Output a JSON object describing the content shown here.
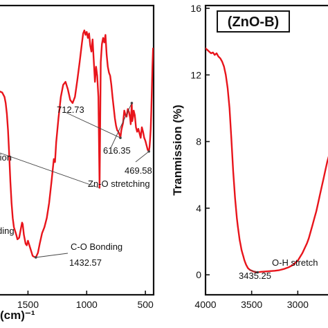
{
  "chart_data": [
    {
      "type": "line",
      "title": "",
      "xlabel": "(cm)⁻¹",
      "ylabel": "",
      "xlim": [
        1750,
        430
      ],
      "ylim": [
        0,
        16
      ],
      "x_ticks": [
        1500,
        1000,
        500
      ],
      "x_tick_labels": [
        "1500",
        "1000",
        "500"
      ],
      "series": [
        {
          "color": "#e8141b",
          "x": [
            1750,
            1720,
            1700,
            1690,
            1680,
            1670,
            1660,
            1650,
            1640,
            1630,
            1620,
            1600,
            1590,
            1575,
            1560,
            1550,
            1545,
            1535,
            1520,
            1510,
            1500,
            1480,
            1460,
            1450,
            1433,
            1415,
            1400,
            1380,
            1360,
            1340,
            1320,
            1300,
            1280,
            1270,
            1260,
            1240,
            1220,
            1200,
            1180,
            1160,
            1140,
            1120,
            1100,
            1080,
            1060,
            1040,
            1030,
            1020,
            1010,
            1000,
            990,
            980,
            970,
            960,
            950,
            940,
            930,
            920,
            910,
            900,
            895,
            890,
            885,
            880,
            870,
            860,
            850,
            840,
            830,
            820,
            810,
            800,
            790,
            780,
            770,
            760,
            750,
            740,
            730,
            720,
            713,
            705,
            690,
            680,
            670,
            660,
            650,
            640,
            630,
            625,
            620,
            616,
            612,
            605,
            600,
            590,
            580,
            570,
            560,
            550,
            540,
            530,
            520,
            510,
            500,
            490,
            480,
            470,
            465,
            460,
            455,
            450,
            445,
            440,
            435
          ],
          "y": [
            11.0,
            10.9,
            10.6,
            10.2,
            9.5,
            8.4,
            6.8,
            5.0,
            3.6,
            2.6,
            2.0,
            1.5,
            1.2,
            1.3,
            1.9,
            2.3,
            2.2,
            1.5,
            0.9,
            0.8,
            1.1,
            0.6,
            0.1,
            0.05,
            0.0,
            0.3,
            0.9,
            1.6,
            2.0,
            2.6,
            3.6,
            5.0,
            6.5,
            6.3,
            7.6,
            9.2,
            10.6,
            11.4,
            11.6,
            11.1,
            10.4,
            10.2,
            10.6,
            11.7,
            12.9,
            14.2,
            14.8,
            15.0,
            14.7,
            14.9,
            14.5,
            14.8,
            14.0,
            13.6,
            14.4,
            13.0,
            11.6,
            12.6,
            12.0,
            10.6,
            7.4,
            4.6,
            9.0,
            12.9,
            14.1,
            14.5,
            14.2,
            14.7,
            13.4,
            12.6,
            12.2,
            12.0,
            11.4,
            10.6,
            9.9,
            9.2,
            8.7,
            8.4,
            8.3,
            8.1,
            7.9,
            8.4,
            8.9,
            9.7,
            9.4,
            9.3,
            9.8,
            9.6,
            9.2,
            8.8,
            9.6,
            10.2,
            9.0,
            9.3,
            9.7,
            9.4,
            8.6,
            8.3,
            8.5,
            8.2,
            7.9,
            8.6,
            8.3,
            7.9,
            7.7,
            7.4,
            7.1,
            7.0,
            7.3,
            7.8,
            8.5,
            9.6,
            11.2,
            12.6,
            13.8
          ]
        }
      ],
      "annotations": [
        {
          "label": "712.73",
          "x": 713,
          "y": 7.9
        },
        {
          "label": "616.35",
          "x": 616,
          "y": 10.2
        },
        {
          "label": "469.58",
          "x": 470,
          "y": 7.0
        },
        {
          "label": "Zn-O stretching",
          "x": 470,
          "y": 7.0
        },
        {
          "label": "tion",
          "x": 895,
          "y": 4.6
        },
        {
          "label": "ding",
          "x": 1535,
          "y": 1.5
        },
        {
          "label": "C-O Bonding",
          "x": 1433,
          "y": 0.0
        },
        {
          "label": "1432.57",
          "x": 1433,
          "y": 0.0
        }
      ]
    },
    {
      "type": "line",
      "title": "(ZnO-B)",
      "xlabel": "",
      "ylabel": "Tranmission (%)",
      "xlim": [
        4000,
        2650
      ],
      "ylim": [
        -1.2,
        16
      ],
      "x_ticks": [
        4000,
        3500,
        3000
      ],
      "x_tick_labels": [
        "4000",
        "3500",
        "3000"
      ],
      "y_ticks": [
        0,
        4,
        8,
        12,
        16
      ],
      "y_tick_labels": [
        "0",
        "4",
        "8",
        "12",
        "16"
      ],
      "series": [
        {
          "color": "#e8141b",
          "x": [
            4000,
            3980,
            3960,
            3940,
            3920,
            3900,
            3880,
            3860,
            3840,
            3820,
            3800,
            3780,
            3760,
            3740,
            3720,
            3700,
            3680,
            3660,
            3650,
            3640,
            3630,
            3620,
            3610,
            3600,
            3590,
            3580,
            3570,
            3560,
            3550,
            3540,
            3530,
            3520,
            3510,
            3500,
            3480,
            3460,
            3435,
            3400,
            3350,
            3300,
            3250,
            3200,
            3150,
            3100,
            3050,
            3000,
            2950,
            2900,
            2880,
            2860,
            2840,
            2820,
            2800,
            2780,
            2760,
            2740,
            2720,
            2700,
            2680,
            2660
          ],
          "y": [
            13.6,
            13.5,
            13.4,
            13.3,
            13.35,
            13.2,
            13.3,
            13.1,
            13.0,
            12.8,
            12.5,
            12.0,
            11.2,
            10.0,
            8.2,
            6.2,
            4.6,
            3.4,
            2.9,
            2.5,
            2.1,
            1.8,
            1.5,
            1.3,
            1.1,
            0.9,
            0.75,
            0.6,
            0.5,
            0.4,
            0.35,
            0.3,
            0.27,
            0.25,
            0.2,
            0.18,
            0.15,
            0.18,
            0.2,
            0.22,
            0.24,
            0.28,
            0.35,
            0.45,
            0.6,
            0.85,
            1.3,
            1.9,
            2.2,
            2.6,
            3.0,
            3.4,
            3.8,
            4.3,
            4.8,
            5.3,
            5.8,
            6.3,
            6.8,
            7.2
          ]
        }
      ],
      "annotations": [
        {
          "label": "3435.25",
          "x": 3435,
          "y": 0.15
        },
        {
          "label": "O-H stretch",
          "x": 3420,
          "y": 0.18
        }
      ]
    }
  ],
  "title_box": {
    "label": "(ZnO-B)"
  },
  "colors": {
    "curve": "#e8141b",
    "axes": "#111111"
  }
}
